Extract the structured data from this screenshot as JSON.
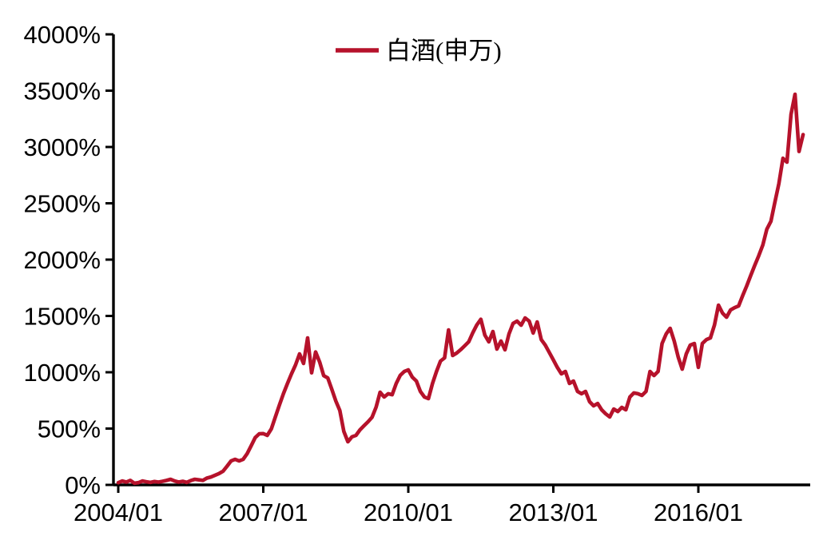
{
  "chart_data": {
    "type": "line",
    "title": "",
    "xlabel": "",
    "ylabel": "",
    "ylim": [
      0,
      4000
    ],
    "y_tick_step": 500,
    "y_tick_labels": [
      "0%",
      "500%",
      "1000%",
      "1500%",
      "2000%",
      "2500%",
      "3000%",
      "3500%",
      "4000%"
    ],
    "x_tick_labels": [
      "2004/01",
      "2007/01",
      "2010/01",
      "2013/01",
      "2016/01"
    ],
    "x_tick_month_indices": [
      0,
      36,
      72,
      108,
      144
    ],
    "x_start": "2004/01",
    "x_end": "2018/03",
    "frequency": "monthly",
    "grid": false,
    "legend_position": "top-center",
    "background_color": "#ffffff",
    "axis_color": "#000000",
    "series": [
      {
        "name": "白酒(申万)",
        "color": "#B6122B",
        "values": [
          20,
          35,
          25,
          40,
          15,
          20,
          35,
          28,
          22,
          30,
          25,
          32,
          40,
          50,
          35,
          25,
          32,
          22,
          38,
          50,
          45,
          40,
          60,
          70,
          85,
          100,
          121,
          165,
          213,
          227,
          213,
          227,
          277,
          348,
          420,
          454,
          455,
          440,
          497,
          603,
          709,
          809,
          901,
          986,
          1064,
          1163,
          1078,
          1305,
          995,
          1180,
          1090,
          970,
          950,
          850,
          745,
          660,
          475,
          383,
          426,
          440,
          489,
          525,
          560,
          600,
          690,
          823,
          780,
          809,
          801,
          901,
          972,
          1007,
          1021,
          957,
          922,
          830,
          780,
          766,
          901,
          1007,
          1099,
          1128,
          1376,
          1149,
          1170,
          1200,
          1235,
          1270,
          1350,
          1420,
          1470,
          1330,
          1270,
          1362,
          1206,
          1277,
          1199,
          1340,
          1433,
          1454,
          1418,
          1482,
          1454,
          1348,
          1447,
          1290,
          1241,
          1175,
          1110,
          1043,
          986,
          1007,
          901,
          922,
          830,
          809,
          830,
          738,
          702,
          723,
          667,
          631,
          603,
          674,
          652,
          688,
          667,
          780,
          816,
          809,
          794,
          830,
          1007,
          971,
          1007,
          1255,
          1340,
          1390,
          1277,
          1135,
          1028,
          1163,
          1241,
          1255,
          1043,
          1255,
          1290,
          1305,
          1420,
          1596,
          1525,
          1489,
          1553,
          1574,
          1589,
          1681,
          1766,
          1858,
          1950,
          2035,
          2130,
          2270,
          2340,
          2510,
          2675,
          2900,
          2865,
          3290,
          3468,
          2960,
          3110
        ]
      }
    ]
  }
}
